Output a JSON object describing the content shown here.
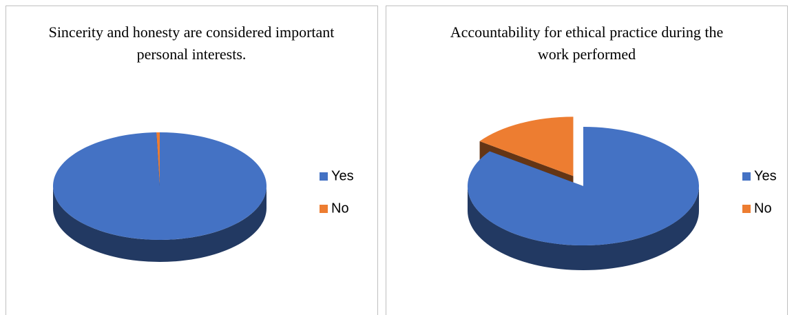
{
  "chart_data": [
    {
      "type": "pie",
      "title": "Sincerity and honesty are considered important personal interests.",
      "categories": [
        "Yes",
        "No"
      ],
      "values": [
        99.5,
        0.5
      ],
      "colors": [
        "#4472c4",
        "#ed7d31"
      ],
      "legend": "right"
    },
    {
      "type": "pie",
      "title": "Accountability for ethical practice during the work performed",
      "categories": [
        "Yes",
        "No"
      ],
      "values": [
        85,
        15
      ],
      "colors": [
        "#4472c4",
        "#ed7d31"
      ],
      "legend": "right"
    }
  ]
}
